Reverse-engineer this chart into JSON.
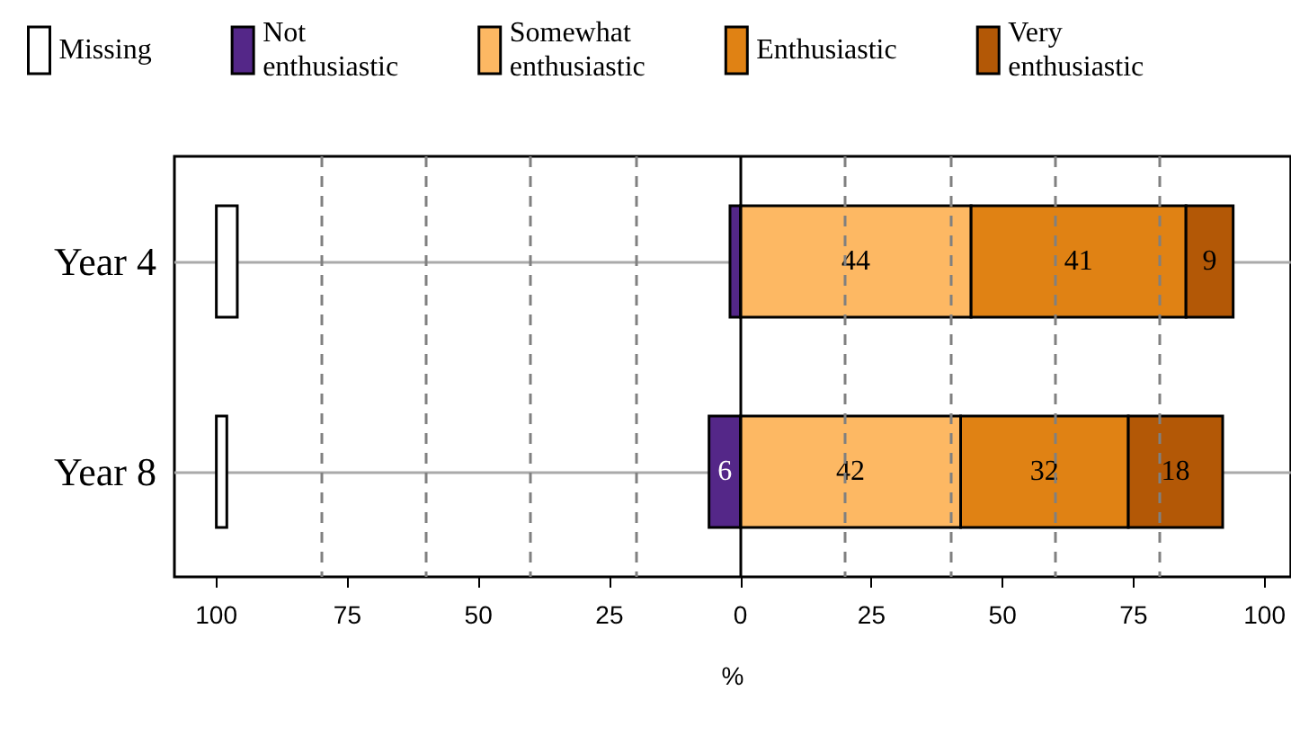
{
  "chart_data": {
    "type": "bar",
    "orientation": "horizontal",
    "xlabel": "%",
    "categories": [
      "Year 4",
      "Year 8"
    ],
    "series": [
      {
        "name": "Missing",
        "color": "#ffffff",
        "base": [
          -100,
          -100
        ],
        "values": [
          4,
          2
        ],
        "value_labels": [
          null,
          null
        ]
      },
      {
        "name": "Not enthusiastic",
        "color": "#542788",
        "base": [
          -2,
          -6
        ],
        "values": [
          2,
          6
        ],
        "value_labels": [
          null,
          "6"
        ]
      },
      {
        "name": "Somewhat enthusiastic",
        "color": "#fdb863",
        "base": [
          0,
          0
        ],
        "values": [
          44,
          42
        ],
        "value_labels": [
          "44",
          "42"
        ]
      },
      {
        "name": "Enthusiastic",
        "color": "#e08214",
        "base": [
          44,
          42
        ],
        "values": [
          41,
          32
        ],
        "value_labels": [
          "41",
          "32"
        ]
      },
      {
        "name": "Very enthusiastic",
        "color": "#b35806",
        "base": [
          85,
          74
        ],
        "values": [
          9,
          18
        ],
        "value_labels": [
          "9",
          "18"
        ]
      }
    ],
    "xlim": [
      -108,
      105
    ],
    "xticks": [
      {
        "value": -100,
        "label": "100"
      },
      {
        "value": -75,
        "label": "75"
      },
      {
        "value": -50,
        "label": "50"
      },
      {
        "value": -25,
        "label": "25"
      },
      0,
      25,
      50,
      75,
      100
    ],
    "ref_lines": [
      {
        "axis": "x",
        "value": -80,
        "line_style": "dashed",
        "color": "#808080"
      },
      {
        "axis": "x",
        "value": -60,
        "line_style": "dashed",
        "color": "#808080"
      },
      {
        "axis": "x",
        "value": -40,
        "line_style": "dashed",
        "color": "#808080"
      },
      {
        "axis": "x",
        "value": -20,
        "line_style": "dashed",
        "color": "#808080"
      },
      {
        "axis": "x",
        "value": 20,
        "line_style": "dashed",
        "color": "#808080"
      },
      {
        "axis": "x",
        "value": 40,
        "line_style": "dashed",
        "color": "#808080"
      },
      {
        "axis": "x",
        "value": 60,
        "line_style": "dashed",
        "color": "#808080"
      },
      {
        "axis": "x",
        "value": 80,
        "line_style": "dashed",
        "color": "#808080"
      },
      {
        "axis": "x",
        "value": 0,
        "line_style": "solid",
        "color": "#000000"
      }
    ],
    "grid": "y",
    "legend": "top"
  }
}
